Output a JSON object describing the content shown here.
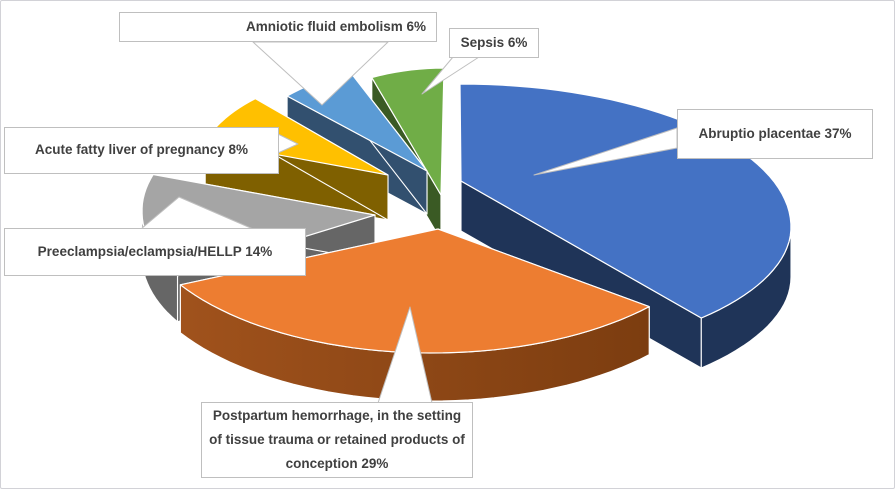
{
  "chart": {
    "background": "#FFFFFF",
    "border_color": "#D2D2D7",
    "callout_border_color": "#BFBFBF",
    "label_text_color": "#404040",
    "slice_outline_color": "#FFFFFF"
  },
  "chart_data": {
    "type": "pie",
    "style": "3d-exploded-pie-with-callout-labels",
    "unit": "%",
    "legend": "none",
    "title": "",
    "categories": [
      "Abruptio placentae",
      "Postpartum hemorrhage, in the setting of tissue trauma or retained products of conception",
      "Preeclampsia/eclampsia/HELLP",
      "Acute fatty liver of pregnancy",
      "Amniotic fluid embolism",
      "Sepsis"
    ],
    "values": [
      37,
      29,
      14,
      8,
      6,
      6
    ],
    "slices": [
      {
        "label": "Abruptio placentae",
        "value": 37,
        "color": "#4472C4",
        "side_color": "#1F3458"
      },
      {
        "label": "Postpartum hemorrhage, in the setting of tissue trauma or retained products of conception",
        "value": 29,
        "color": "#ED7D31",
        "side_color": "#A0521C",
        "side_color_2": "#7C3D10"
      },
      {
        "label": "Preeclampsia/eclampsia/HELLP",
        "value": 14,
        "color": "#A5A5A5",
        "side_color": "#666666"
      },
      {
        "label": "Acute fatty liver of pregnancy",
        "value": 8,
        "color": "#FFC000",
        "side_color": "#7F6000"
      },
      {
        "label": "Amniotic fluid embolism",
        "value": 6,
        "color": "#5B9BD5",
        "side_color": "#32506F"
      },
      {
        "label": "Sepsis",
        "value": 6,
        "color": "#70AD47",
        "side_color": "#3A5A24"
      }
    ],
    "callouts": [
      {
        "text": "Abruptio placentae 37%"
      },
      {
        "text": "Postpartum hemorrhage, in the setting of tissue trauma or retained products of conception 29%"
      },
      {
        "text": "Preeclampsia/eclampsia/HELLP 14%"
      },
      {
        "text": "Acute fatty liver of pregnancy 8%"
      },
      {
        "text": "Amniotic fluid embolism 6%"
      },
      {
        "text": "Sepsis 6%"
      }
    ]
  }
}
